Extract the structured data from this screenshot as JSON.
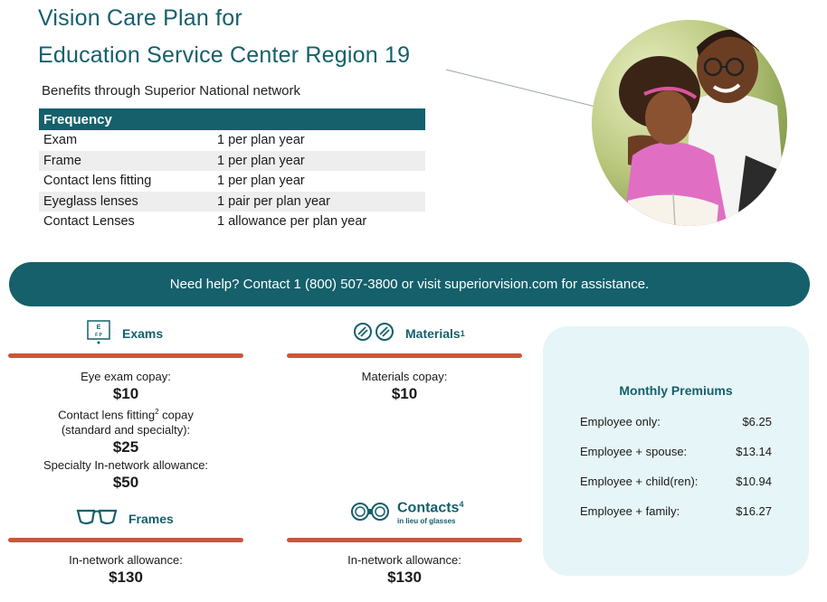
{
  "header": {
    "title_line1": "Vision Care Plan for",
    "title_line2": "Education Service Center Region 19",
    "subtitle": "Benefits through Superior National network"
  },
  "frequency_table": {
    "header": "Frequency",
    "rows": [
      {
        "item": "Exam",
        "value": "1 per plan year"
      },
      {
        "item": "Frame",
        "value": "1 per plan year"
      },
      {
        "item": "Contact lens fitting",
        "value": "1 per plan year"
      },
      {
        "item": "Eyeglass lenses",
        "value": "1 pair per plan year"
      },
      {
        "item": "Contact Lenses",
        "value": "1 allowance per plan year"
      }
    ]
  },
  "help_bar": {
    "text": "Need help? Contact 1 (800) 507-3800 or visit superiorvision.com for assistance."
  },
  "exams": {
    "heading": "Exams",
    "icon": "eye-chart-icon",
    "eye_exam_label": "Eye exam copay:",
    "eye_exam_amount": "$10",
    "fitting_label_1": "Contact lens fitting",
    "fitting_sup": "2",
    "fitting_label_2": " copay",
    "fitting_label_3": "(standard and specialty):",
    "fitting_amount": "$25",
    "specialty_label": "Specialty In-network allowance:",
    "specialty_amount": "$50"
  },
  "materials": {
    "heading": "Materials",
    "sup": "1",
    "icon": "lenses-icon",
    "copay_label": "Materials copay:",
    "copay_amount": "$10"
  },
  "frames": {
    "heading": "Frames",
    "icon": "glasses-icon",
    "allowance_label": "In-network allowance:",
    "allowance_amount": "$130"
  },
  "contacts": {
    "heading": "Contacts",
    "sup": "4",
    "subheading": "in lieu of glasses",
    "icon": "contact-lens-case-icon",
    "allowance_label": "In-network allowance:",
    "allowance_amount": "$130"
  },
  "premiums": {
    "title": "Monthly Premiums",
    "rows": [
      {
        "label": "Employee only:",
        "amount": "$6.25"
      },
      {
        "label": "Employee + spouse:",
        "amount": "$13.14"
      },
      {
        "label": "Employee + child(ren):",
        "amount": "$10.94"
      },
      {
        "label": "Employee + family:",
        "amount": "$16.27"
      }
    ]
  },
  "colors": {
    "brand_teal": "#15606b",
    "accent_rust": "#c9573b",
    "premium_bg": "#e6f5f7"
  }
}
